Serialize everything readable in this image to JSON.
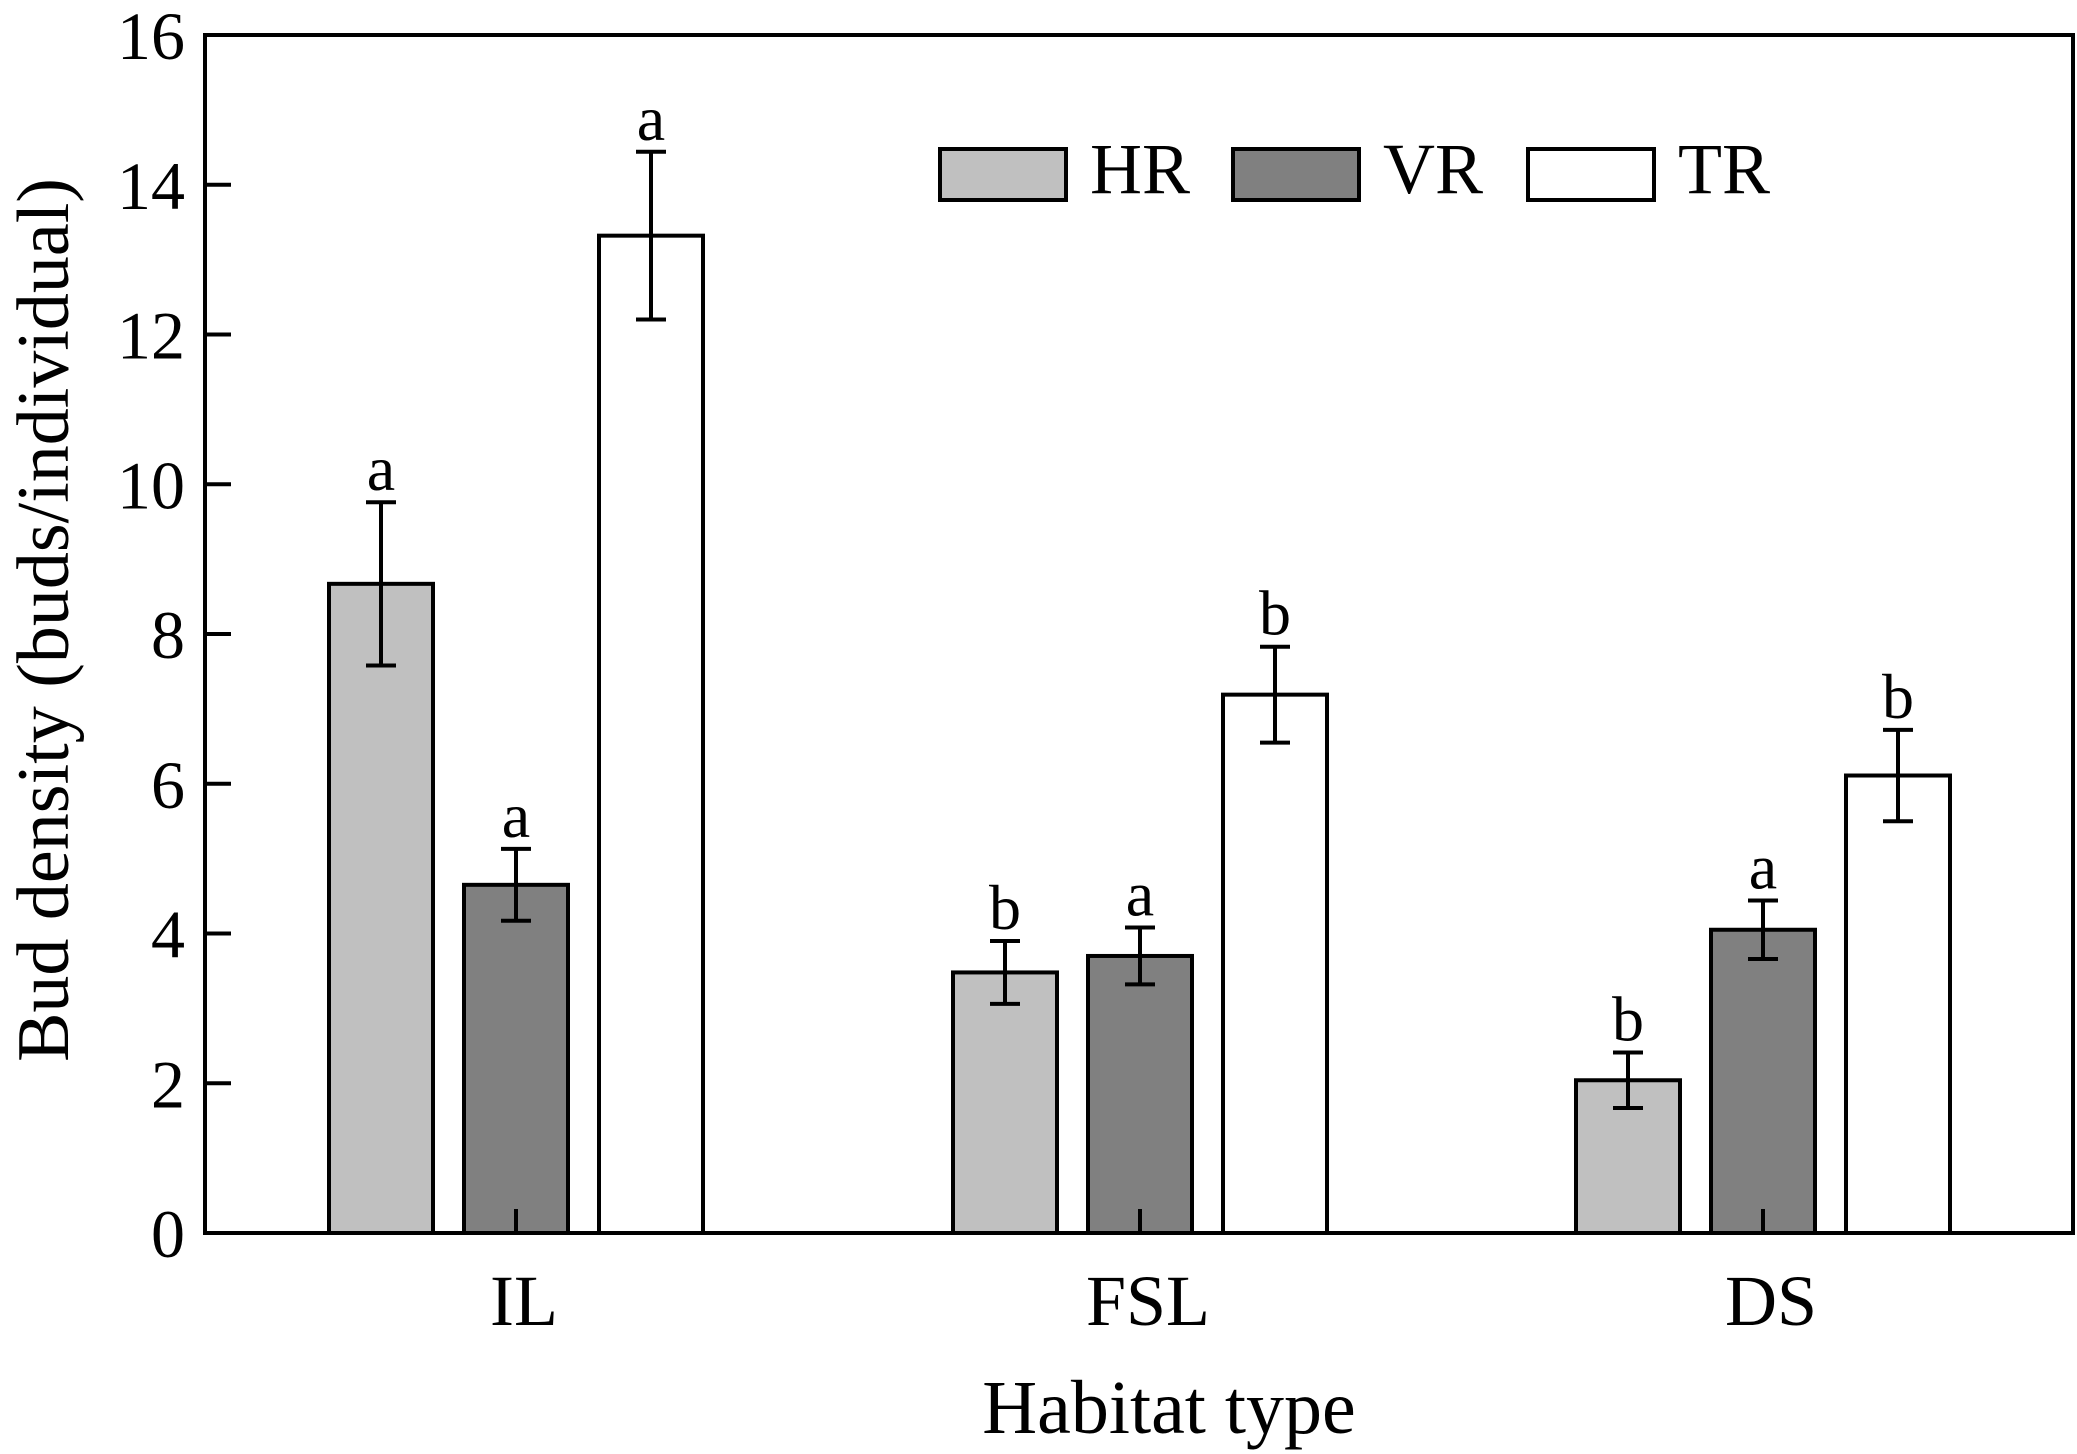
{
  "chart_data": {
    "type": "bar",
    "title": "",
    "xlabel": "Habitat type",
    "ylabel": "Bud density (buds/individual)",
    "ylim": [
      0,
      16
    ],
    "yticks": [
      0,
      2,
      4,
      6,
      8,
      10,
      12,
      14,
      16
    ],
    "grid": false,
    "legend_position": "top-right",
    "categories": [
      "IL",
      "FSL",
      "DS"
    ],
    "series": [
      {
        "name": "HR",
        "color": "#c0c0c0",
        "values": [
          8.67,
          3.48,
          2.04
        ],
        "errors": [
          1.09,
          0.42,
          0.37
        ],
        "letters": [
          "a",
          "b",
          "b"
        ]
      },
      {
        "name": "VR",
        "color": "#808080",
        "values": [
          4.65,
          3.7,
          4.05
        ],
        "errors": [
          0.48,
          0.38,
          0.39
        ],
        "letters": [
          "a",
          "a",
          "a"
        ]
      },
      {
        "name": "TR",
        "color": "#ffffff",
        "values": [
          13.32,
          7.19,
          6.11
        ],
        "errors": [
          1.12,
          0.64,
          0.61
        ],
        "letters": [
          "a",
          "b",
          "b"
        ]
      }
    ]
  }
}
